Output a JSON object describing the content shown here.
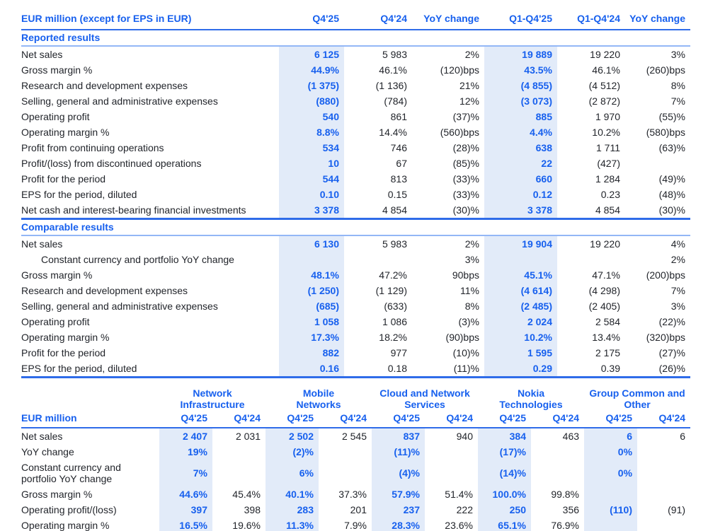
{
  "colors": {
    "accent_blue": "#1760ee",
    "highlight_band": "#e2ebf9",
    "rule_dark_blue": "#2f6ce9",
    "rule_light_blue": "#93b7f6",
    "body_text": "#22252b"
  },
  "main_table": {
    "header": [
      "EUR million (except for EPS in EUR)",
      "Q4'25",
      "Q4'24",
      "YoY change",
      "Q1-Q4'25",
      "Q1-Q4'24",
      "YoY change"
    ],
    "highlight_columns": [
      "Q4'25",
      "Q1-Q4'25"
    ],
    "sections": [
      {
        "title": "Reported results",
        "rows": [
          {
            "label": "Net sales",
            "cells": [
              "6 125",
              "5 983",
              "2%",
              "19 889",
              "19 220",
              "3%"
            ]
          },
          {
            "label": "Gross margin %",
            "cells": [
              "44.9%",
              "46.1%",
              "(120)bps",
              "43.5%",
              "46.1%",
              "(260)bps"
            ]
          },
          {
            "label": "Research and development expenses",
            "cells": [
              "(1 375)",
              "(1 136)",
              "21%",
              "(4 855)",
              "(4 512)",
              "8%"
            ]
          },
          {
            "label": "Selling, general and administrative expenses",
            "cells": [
              "(880)",
              "(784)",
              "12%",
              "(3 073)",
              "(2 872)",
              "7%"
            ]
          },
          {
            "label": "Operating profit",
            "cells": [
              "540",
              "861",
              "(37)%",
              "885",
              "1 970",
              "(55)%"
            ]
          },
          {
            "label": "Operating margin %",
            "cells": [
              "8.8%",
              "14.4%",
              "(560)bps",
              "4.4%",
              "10.2%",
              "(580)bps"
            ]
          },
          {
            "label": "Profit from continuing operations",
            "cells": [
              "534",
              "746",
              "(28)%",
              "638",
              "1 711",
              "(63)%"
            ]
          },
          {
            "label": "Profit/(loss) from discontinued operations",
            "cells": [
              "10",
              "67",
              "(85)%",
              "22",
              "(427)",
              ""
            ]
          },
          {
            "label": "Profit for the period",
            "cells": [
              "544",
              "813",
              "(33)%",
              "660",
              "1 284",
              "(49)%"
            ]
          },
          {
            "label": "EPS for the period, diluted",
            "cells": [
              "0.10",
              "0.15",
              "(33)%",
              "0.12",
              "0.23",
              "(48)%"
            ]
          },
          {
            "label": "Net cash and interest-bearing financial investments",
            "cells": [
              "3 378",
              "4 854",
              "(30)%",
              "3 378",
              "4 854",
              "(30)%"
            ]
          }
        ]
      },
      {
        "title": "Comparable results",
        "rows": [
          {
            "label": "Net sales",
            "cells": [
              "6 130",
              "5 983",
              "2%",
              "19 904",
              "19 220",
              "4%"
            ]
          },
          {
            "label": "Constant currency and portfolio YoY change",
            "indent": true,
            "cells": [
              "",
              "",
              "3%",
              "",
              "",
              "2%"
            ]
          },
          {
            "label": "Gross margin %",
            "cells": [
              "48.1%",
              "47.2%",
              "90bps",
              "45.1%",
              "47.1%",
              "(200)bps"
            ]
          },
          {
            "label": "Research and development expenses",
            "cells": [
              "(1 250)",
              "(1 129)",
              "11%",
              "(4 614)",
              "(4 298)",
              "7%"
            ]
          },
          {
            "label": "Selling, general and administrative expenses",
            "cells": [
              "(685)",
              "(633)",
              "8%",
              "(2 485)",
              "(2 405)",
              "3%"
            ]
          },
          {
            "label": "Operating profit",
            "cells": [
              "1 058",
              "1 086",
              "(3)%",
              "2 024",
              "2 584",
              "(22)%"
            ]
          },
          {
            "label": "Operating margin %",
            "cells": [
              "17.3%",
              "18.2%",
              "(90)bps",
              "10.2%",
              "13.4%",
              "(320)bps"
            ]
          },
          {
            "label": "Profit for the period",
            "cells": [
              "882",
              "977",
              "(10)%",
              "1 595",
              "2 175",
              "(27)%"
            ]
          },
          {
            "label": "EPS for the period, diluted",
            "cells": [
              "0.16",
              "0.18",
              "(11)%",
              "0.29",
              "0.39",
              "(26)%"
            ]
          }
        ]
      }
    ]
  },
  "segment_table": {
    "groups": [
      {
        "line1": "Network",
        "line2": "Infrastructure"
      },
      {
        "line1": "Mobile",
        "line2": "Networks"
      },
      {
        "line1": "Cloud and Network",
        "line2": "Services"
      },
      {
        "line1": "Nokia",
        "line2": "Technologies"
      },
      {
        "line1": "Group Common and",
        "line2": "Other"
      }
    ],
    "subheader_label": "EUR million",
    "period_labels": [
      "Q4'25",
      "Q4'24"
    ],
    "highlight_period": "Q4'25",
    "rows": [
      {
        "label": "Net sales",
        "cells": [
          "2 407",
          "2 031",
          "2 502",
          "2 545",
          "837",
          "940",
          "384",
          "463",
          "6",
          "6"
        ]
      },
      {
        "label": "YoY change",
        "cells": [
          "19%",
          "",
          "(2)%",
          "",
          "(11)%",
          "",
          "(17)%",
          "",
          "0%",
          ""
        ]
      },
      {
        "label": "Constant currency and portfolio YoY change",
        "cells": [
          "7%",
          "",
          "6%",
          "",
          "(4)%",
          "",
          "(14)%",
          "",
          "0%",
          ""
        ]
      },
      {
        "label": "Gross margin %",
        "cells": [
          "44.6%",
          "45.4%",
          "40.1%",
          "37.3%",
          "57.9%",
          "51.4%",
          "100.0%",
          "99.8%",
          "",
          ""
        ]
      },
      {
        "label": "Operating profit/(loss)",
        "cells": [
          "397",
          "398",
          "283",
          "201",
          "237",
          "222",
          "250",
          "356",
          "(110)",
          "(91)"
        ]
      },
      {
        "label": "Operating margin %",
        "cells": [
          "16.5%",
          "19.6%",
          "11.3%",
          "7.9%",
          "28.3%",
          "23.6%",
          "65.1%",
          "76.9%",
          "",
          ""
        ]
      }
    ]
  }
}
